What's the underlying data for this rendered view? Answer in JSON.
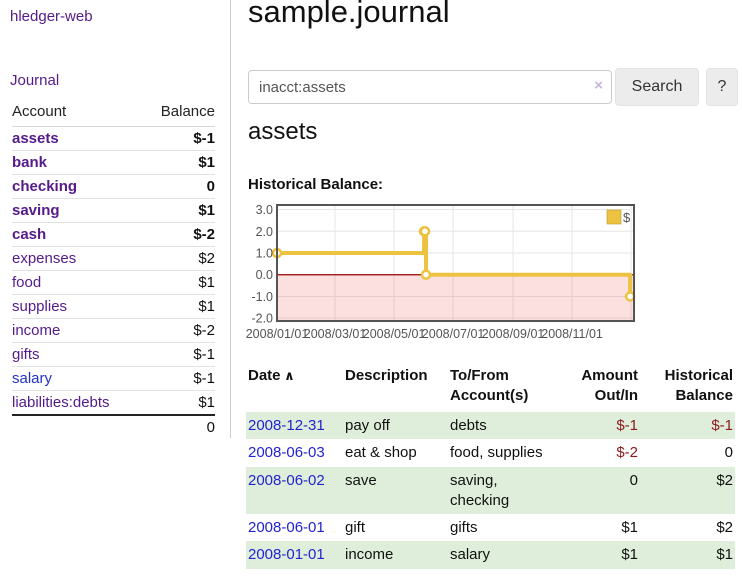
{
  "app": {
    "title": "hledger-web"
  },
  "sidebar": {
    "journal_link": "Journal",
    "accounts_table": {
      "account_header": "Account",
      "balance_header": "Balance",
      "rows": [
        {
          "name": "assets",
          "indent": 1,
          "bold": true,
          "balance": "$-1",
          "neg": "strong",
          "link": "purple"
        },
        {
          "name": "bank",
          "indent": 2,
          "bold": true,
          "balance": "$1",
          "neg": "none",
          "link": "purple"
        },
        {
          "name": "checking",
          "indent": 3,
          "bold": true,
          "balance": "0",
          "neg": "none",
          "link": "purple"
        },
        {
          "name": "saving",
          "indent": 3,
          "bold": true,
          "balance": "$1",
          "neg": "none",
          "link": "purple"
        },
        {
          "name": "cash",
          "indent": 2,
          "bold": true,
          "balance": "$-2",
          "neg": "strong",
          "link": "purple"
        },
        {
          "name": "expenses",
          "indent": 1,
          "bold": false,
          "balance": "$2",
          "neg": "none",
          "link": "purple"
        },
        {
          "name": "food",
          "indent": 2,
          "bold": false,
          "balance": "$1",
          "neg": "none",
          "link": "purple"
        },
        {
          "name": "supplies",
          "indent": 2,
          "bold": false,
          "balance": "$1",
          "neg": "none",
          "link": "purple"
        },
        {
          "name": "income",
          "indent": 1,
          "bold": false,
          "balance": "$-2",
          "neg": "light",
          "link": "purple"
        },
        {
          "name": "gifts",
          "indent": 2,
          "bold": false,
          "balance": "$-1",
          "neg": "light",
          "link": "purple"
        },
        {
          "name": "salary",
          "indent": 2,
          "bold": false,
          "balance": "$-1",
          "neg": "light",
          "link": "blue"
        },
        {
          "name": "liabilities:debts",
          "indent": 1,
          "bold": false,
          "balance": "$1",
          "neg": "none",
          "link": "purple"
        }
      ],
      "total": "0"
    }
  },
  "header": {
    "title": "sample.journal"
  },
  "search": {
    "value": "inacct:assets",
    "clear_icon": "×",
    "button_label": "Search",
    "help_label": "?"
  },
  "account_page": {
    "heading": "assets",
    "chart_label": "Historical Balance:"
  },
  "chart_data": {
    "type": "line",
    "title": "Historical Balance",
    "step": true,
    "series": [
      {
        "name": "$",
        "color": "#edc240",
        "points": [
          {
            "date": "2008-01-01",
            "value": 1
          },
          {
            "date": "2008-06-01",
            "value": 2
          },
          {
            "date": "2008-06-02",
            "value": 2
          },
          {
            "date": "2008-06-03",
            "value": 0
          },
          {
            "date": "2008-12-31",
            "value": -1
          }
        ]
      }
    ],
    "x_ticks": [
      {
        "date": "2008-01-01",
        "label": "2008/01/01"
      },
      {
        "date": "2008-03-01",
        "label": "2008/03/01"
      },
      {
        "date": "2008-05-01",
        "label": "2008/05/01"
      },
      {
        "date": "2008-07-01",
        "label": "2008/07/01"
      },
      {
        "date": "2008-09-01",
        "label": "2008/09/01"
      },
      {
        "date": "2008-11-01",
        "label": "2008/11/01"
      },
      {
        "date": "2009-01-01",
        "label": ""
      }
    ],
    "y_ticks": [
      3.0,
      2.0,
      1.0,
      0.0,
      -1.0,
      -2.0
    ],
    "ylim": [
      -2.13,
      3.21
    ],
    "x_domain": [
      "2008-01-01",
      "2009-01-04"
    ],
    "legend": {
      "label": "$",
      "position": "top-right"
    },
    "colors": {
      "line": "#edc240",
      "marker_fill": "#ffffff",
      "negative_fill": "rgba(235,60,60,0.16)",
      "zero_line": "#990000",
      "grid": "#e6e6e6",
      "border": "#545454",
      "tick_text": "#545454"
    }
  },
  "register": {
    "columns": [
      {
        "label": "Date",
        "align": "left",
        "sort_arrow": "∧"
      },
      {
        "label": "Description",
        "align": "left",
        "sort_arrow": ""
      },
      {
        "label": "To/From Account(s)",
        "align": "left",
        "sort_arrow": ""
      },
      {
        "label": "Amount Out/In",
        "align": "right",
        "sort_arrow": ""
      },
      {
        "label": "Historical Balance",
        "align": "right",
        "sort_arrow": ""
      }
    ],
    "rows": [
      {
        "date": "2008-12-31",
        "description": "pay off",
        "accounts": "debts",
        "amount": "$-1",
        "amount_neg": true,
        "balance": "$-1",
        "balance_neg": true
      },
      {
        "date": "2008-06-03",
        "description": "eat & shop",
        "accounts": "food, supplies",
        "amount": "$-2",
        "amount_neg": true,
        "balance": "0",
        "balance_neg": false
      },
      {
        "date": "2008-06-02",
        "description": "save",
        "accounts": "saving, checking",
        "amount": "0",
        "amount_neg": false,
        "balance": "$2",
        "balance_neg": false
      },
      {
        "date": "2008-06-01",
        "description": "gift",
        "accounts": "gifts",
        "amount": "$1",
        "amount_neg": false,
        "balance": "$2",
        "balance_neg": false
      },
      {
        "date": "2008-01-01",
        "description": "income",
        "accounts": "salary",
        "amount": "$1",
        "amount_neg": false,
        "balance": "$1",
        "balance_neg": false
      }
    ]
  }
}
